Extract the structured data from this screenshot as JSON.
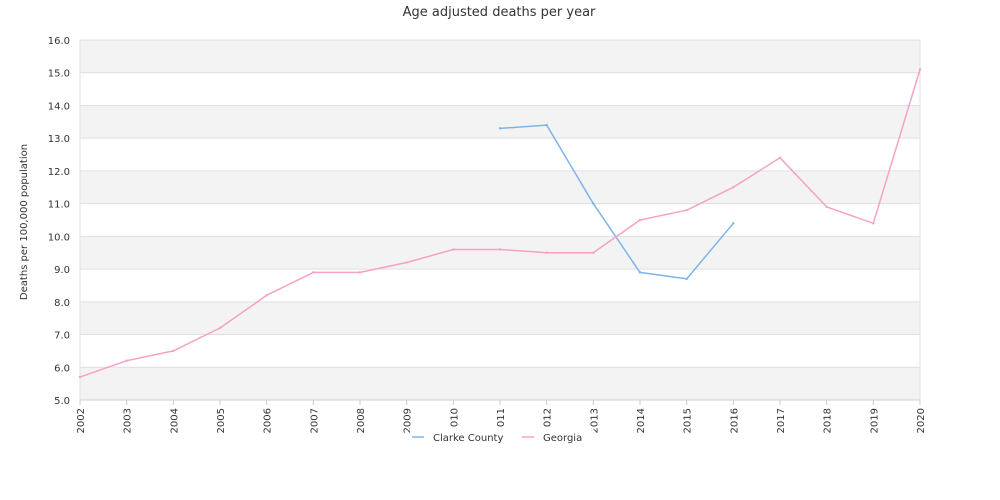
{
  "chart_data": {
    "type": "line",
    "title": "Age adjusted deaths per year",
    "xlabel": "",
    "ylabel": "Deaths per 100,000 population",
    "x": [
      "2002",
      "2003",
      "2004",
      "2005",
      "2006",
      "2007",
      "2008",
      "2009",
      "2010",
      "2011",
      "2012",
      "2013",
      "2014",
      "2015",
      "2016",
      "2017",
      "2018",
      "2019",
      "2020"
    ],
    "x_tick_labels": [
      "2002",
      "2003",
      "2004",
      "2005",
      "2006",
      "2007",
      "2008",
      "2009",
      "2010",
      "2011",
      "2012",
      "2013",
      "2014",
      "2015",
      "2016",
      "2017",
      "2018",
      "2019",
      "2020"
    ],
    "ylim": [
      5.0,
      16.0
    ],
    "y_ticks": [
      "5.0",
      "6.0",
      "7.0",
      "8.0",
      "9.0",
      "10.0",
      "11.0",
      "12.0",
      "13.0",
      "14.0",
      "15.0",
      "16.0"
    ],
    "grid": "horizontal alternating bands",
    "legend_placement": "bottom-center",
    "series": [
      {
        "name": "Clarke County",
        "color": "#7cb5ec",
        "values": [
          null,
          null,
          null,
          null,
          null,
          null,
          null,
          null,
          null,
          13.3,
          13.4,
          11.0,
          8.9,
          8.7,
          10.4,
          null,
          null,
          null,
          null
        ]
      },
      {
        "name": "Georgia",
        "color": "#f7a1c4",
        "values": [
          5.7,
          6.2,
          6.5,
          7.2,
          8.2,
          8.9,
          8.9,
          9.2,
          9.6,
          9.6,
          9.5,
          9.5,
          10.5,
          10.8,
          11.5,
          12.4,
          10.9,
          10.4,
          15.1
        ]
      }
    ]
  }
}
